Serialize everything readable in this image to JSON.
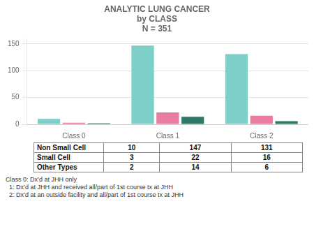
{
  "chart_data": {
    "type": "bar",
    "title": [
      "ANALYTIC LUNG CANCER",
      "by CLASS",
      "N = 351"
    ],
    "categories": [
      "Class 0",
      "Class 1",
      "Class 2"
    ],
    "series": [
      {
        "name": "Non Small Cell",
        "values": [
          10,
          147,
          131
        ],
        "color": "#7ECFC7"
      },
      {
        "name": "Small Cell",
        "values": [
          3,
          22,
          16
        ],
        "color": "#E87DA0"
      },
      {
        "name": "Other Types",
        "values": [
          2,
          14,
          6
        ],
        "color": "#2D7A6A"
      }
    ],
    "ylim": [
      0,
      160
    ],
    "yticks": [
      0,
      50,
      100,
      150
    ],
    "grid": true,
    "table_rows": [
      [
        "Non Small Cell",
        "10",
        "147",
        "131"
      ],
      [
        "Small Cell",
        "3",
        "22",
        "16"
      ],
      [
        "Other Types",
        "2",
        "14",
        "6"
      ]
    ],
    "annotations": [
      "Class 0: Dx’d at JHH only",
      "  1: Dx’d at JHH and received all/part of 1st course tx at JHH",
      "  2: Dx’d at an outside facility and all/part of 1st course tx at JHH"
    ]
  }
}
